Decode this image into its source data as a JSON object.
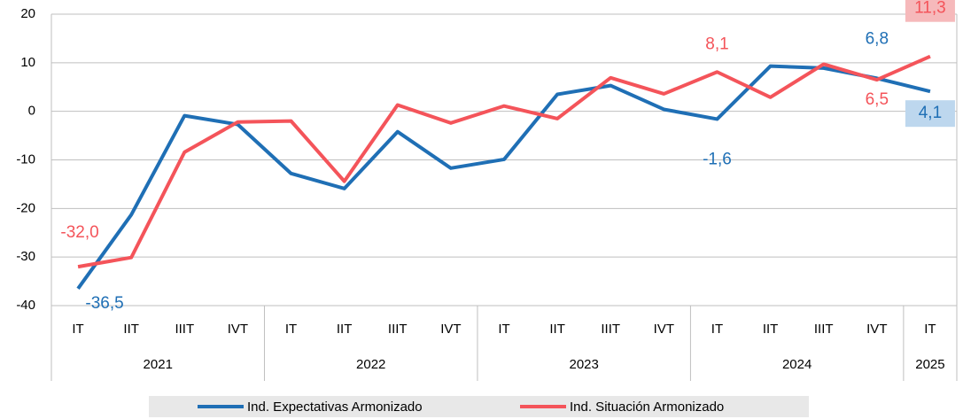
{
  "chart_data": {
    "type": "line",
    "categories": [
      "IT",
      "IIT",
      "IIIT",
      "IVT",
      "IT",
      "IIT",
      "IIIT",
      "IVT",
      "IT",
      "IIT",
      "IIIT",
      "IVT",
      "IT",
      "IIT",
      "IIIT",
      "IVT",
      "IT"
    ],
    "groups": [
      {
        "label": "2021",
        "span": 4
      },
      {
        "label": "2022",
        "span": 4
      },
      {
        "label": "2023",
        "span": 4
      },
      {
        "label": "2024",
        "span": 4
      },
      {
        "label": "2025",
        "span": 1
      }
    ],
    "series": [
      {
        "name": "Ind. Expectativas Armonizado",
        "color": "#1f6fb5",
        "values": [
          -36.5,
          -21.3,
          -0.9,
          -2.7,
          -12.8,
          -15.9,
          -4.2,
          -11.7,
          -9.9,
          3.5,
          5.3,
          0.4,
          -1.6,
          9.3,
          8.9,
          6.8,
          4.1
        ],
        "value_labels": [
          "-36,5",
          null,
          null,
          null,
          null,
          null,
          null,
          null,
          null,
          null,
          null,
          null,
          "-1,6",
          null,
          null,
          "6,8",
          "4,1"
        ]
      },
      {
        "name": "Ind. Situación Armonizado",
        "color": "#f4545a",
        "values": [
          -32.0,
          -30.1,
          -8.4,
          -2.2,
          -2.0,
          -14.4,
          1.3,
          -2.4,
          1.1,
          -1.5,
          6.9,
          3.6,
          8.1,
          2.9,
          9.7,
          6.5,
          11.3
        ],
        "value_labels": [
          "-32,0",
          null,
          null,
          null,
          null,
          null,
          null,
          null,
          null,
          null,
          null,
          null,
          "8,1",
          null,
          null,
          "6,5",
          "11,3"
        ]
      }
    ],
    "ylim": [
      -40,
      20
    ],
    "yticks": [
      -40,
      -30,
      -20,
      -10,
      0,
      10,
      20
    ],
    "grid": true,
    "legend": "bottom"
  }
}
